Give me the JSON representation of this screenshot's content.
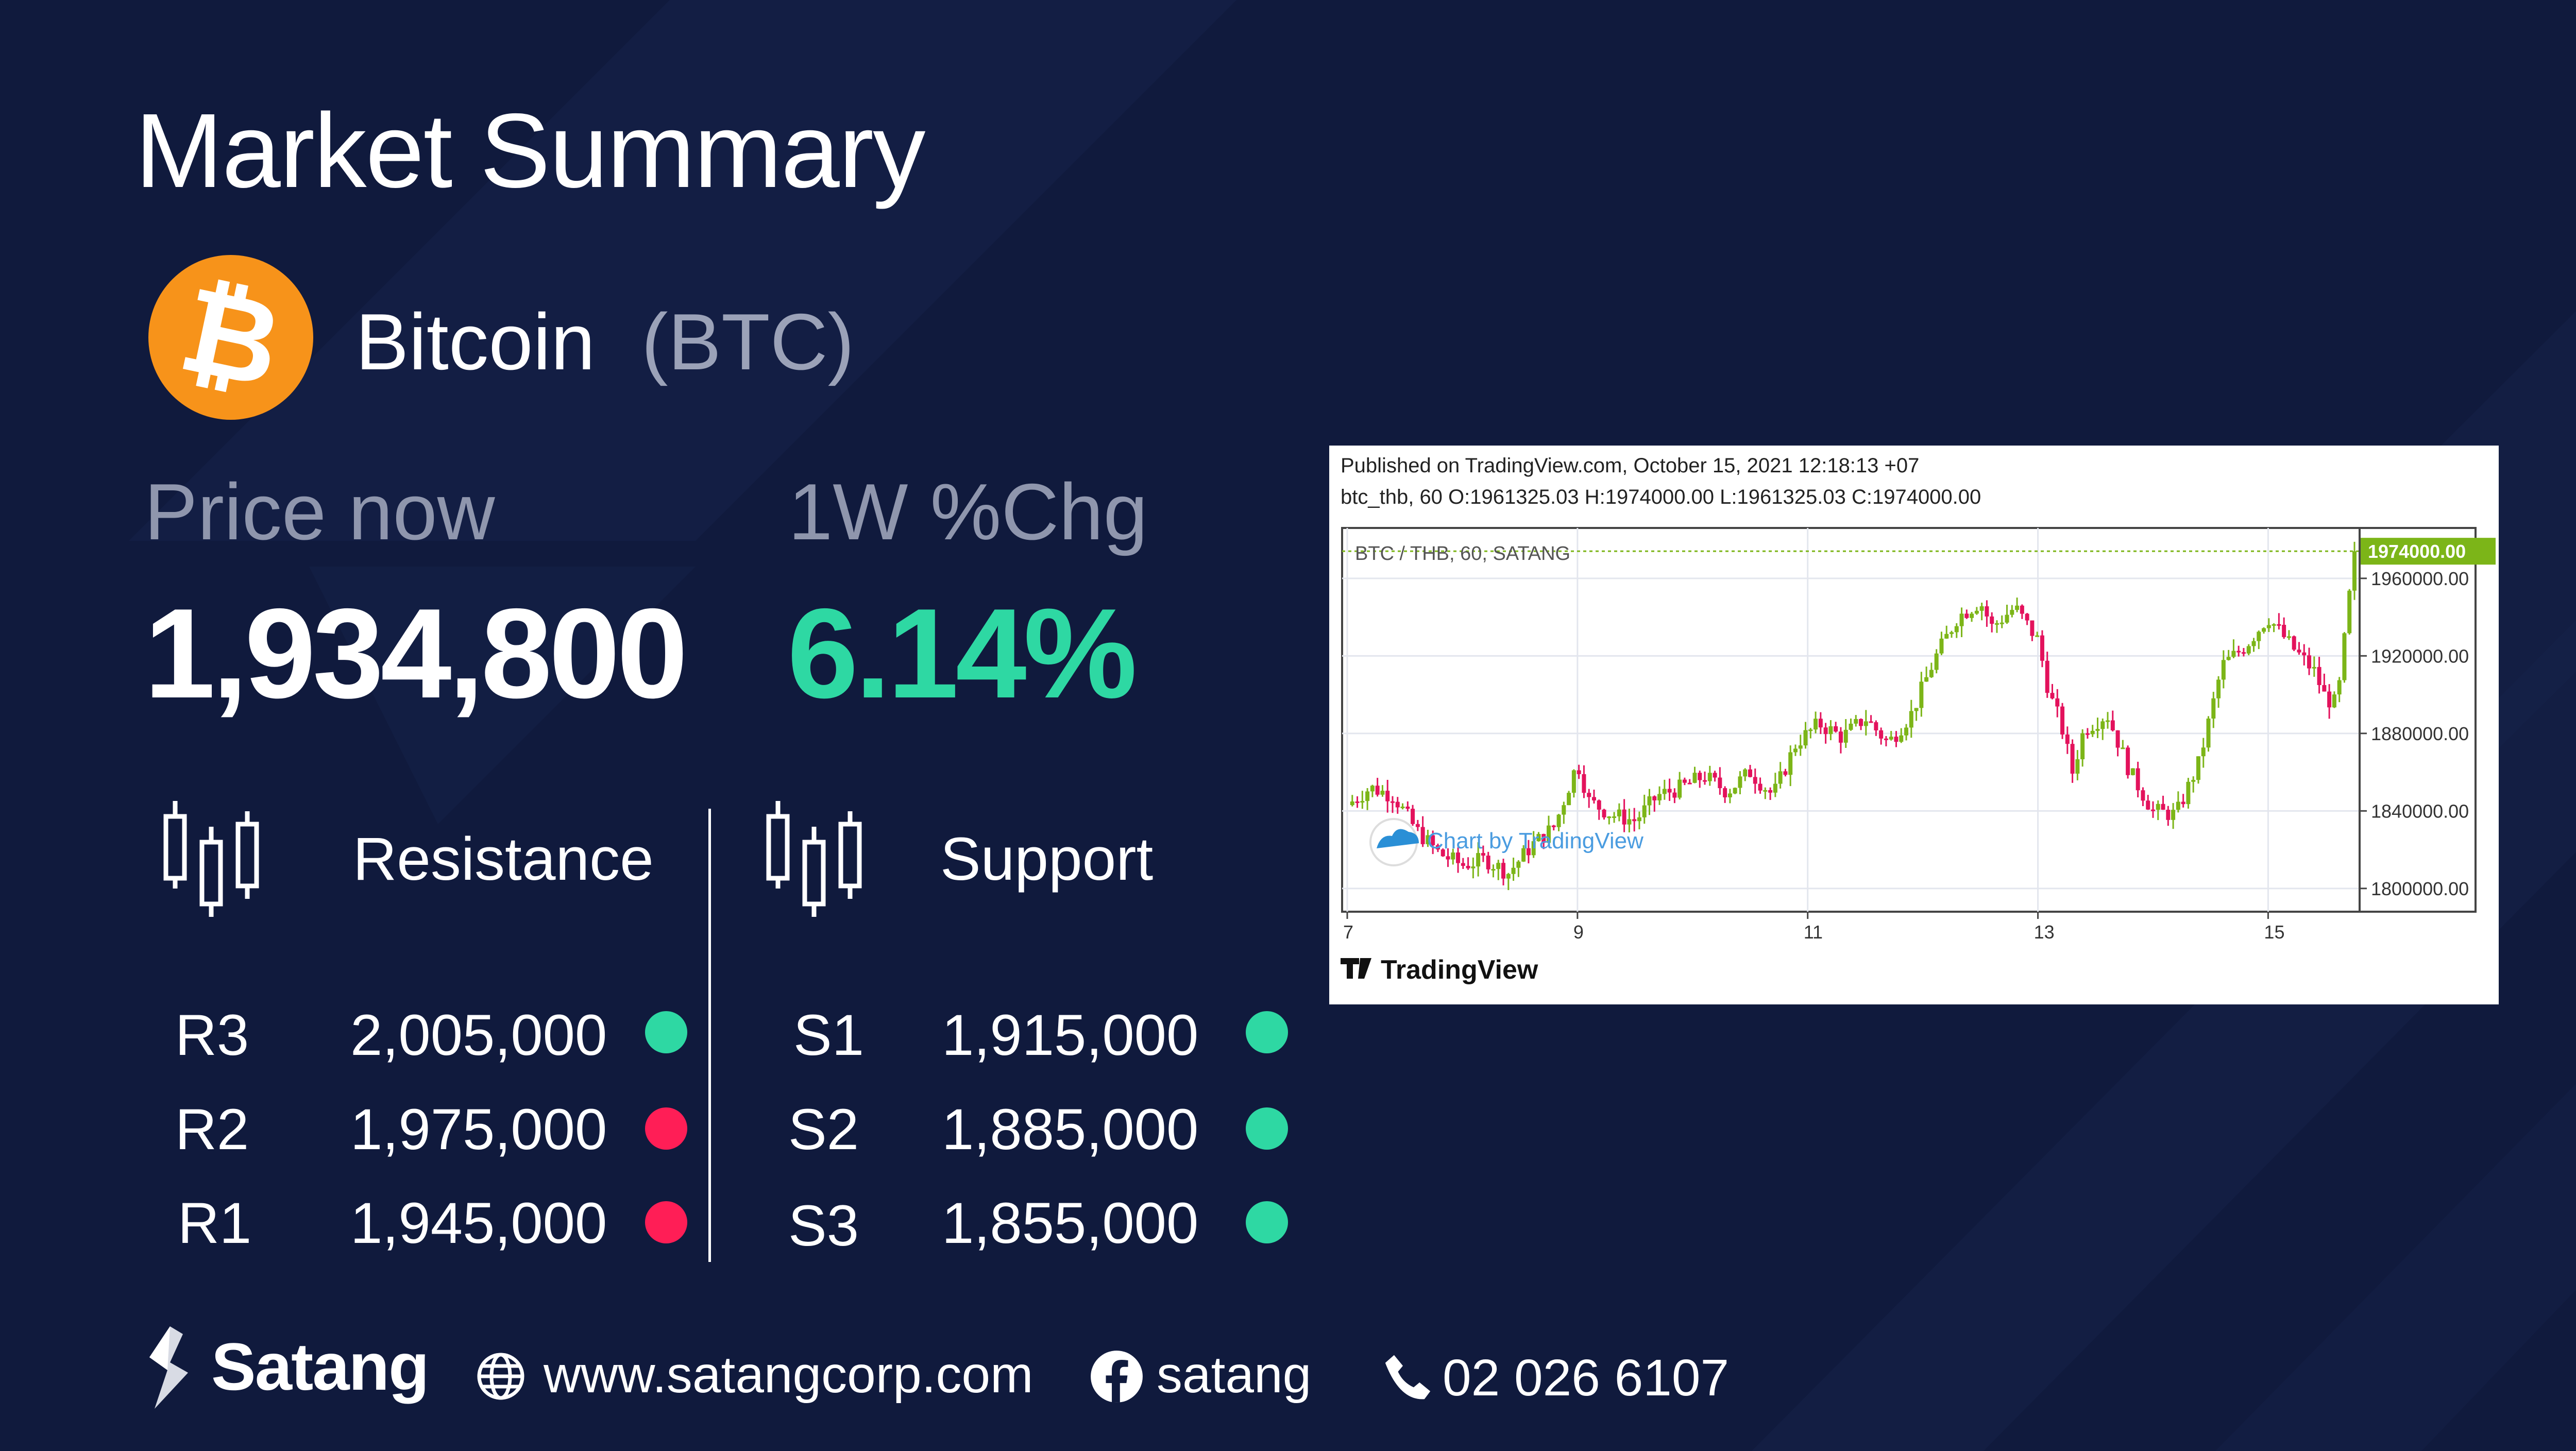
{
  "title": "Market Summary",
  "coin": {
    "name": "Bitcoin",
    "ticker": "(BTC)",
    "logo_glyph": "₿",
    "logo_color": "#f7931a"
  },
  "price": {
    "label": "Price now",
    "value": "1,934,800"
  },
  "change": {
    "label": "1W %Chg",
    "value": "6.14%",
    "color": "#2ed8a3"
  },
  "resistance": {
    "label": "Resistance",
    "icon": "candlestick-icon",
    "levels": [
      {
        "name": "R3",
        "value": "2,005,000",
        "status_color": "#2ed8a3"
      },
      {
        "name": "R2",
        "value": "1,975,000",
        "status_color": "#ff1e56"
      },
      {
        "name": "R1",
        "value": "1,945,000",
        "status_color": "#ff1e56"
      }
    ]
  },
  "support": {
    "label": "Support",
    "icon": "candlestick-icon",
    "levels": [
      {
        "name": "S1",
        "value": "1,915,000",
        "status_color": "#2ed8a3"
      },
      {
        "name": "S2",
        "value": "1,885,000",
        "status_color": "#2ed8a3"
      },
      {
        "name": "S3",
        "value": "1,855,000",
        "status_color": "#2ed8a3"
      }
    ]
  },
  "chart_data": {
    "type": "candlestick",
    "header_line1": "Published on TradingView.com, October 15, 2021 12:18:13 +07",
    "header_line2": "btc_thb, 60 O:1961325.03 H:1974000.00 L:1961325.03 C:1974000.00",
    "inner_title": "BTC / THB, 60, SATANG",
    "watermark": "Chart by TradingView",
    "footer_brand": "TradingView",
    "last_price_label": "1974000.00",
    "last_price": 1974000,
    "y_ticks": [
      1960000,
      1920000,
      1880000,
      1840000,
      1800000
    ],
    "y_tick_labels": [
      "1960000.00",
      "1920000.00",
      "1880000.00",
      "1840000.00",
      "1800000.00"
    ],
    "ylim": [
      1788000,
      1986000
    ],
    "x_ticks": [
      7,
      9,
      11,
      13,
      15
    ],
    "xlim": [
      7,
      15.75
    ],
    "up_color": "#7cb518",
    "down_color": "#e3125c",
    "close_path": [
      [
        7.0,
        1843000
      ],
      [
        7.2,
        1852000
      ],
      [
        7.4,
        1848000
      ],
      [
        7.6,
        1830000
      ],
      [
        7.8,
        1818000
      ],
      [
        8.0,
        1812000
      ],
      [
        8.2,
        1815000
      ],
      [
        8.4,
        1808000
      ],
      [
        8.6,
        1822000
      ],
      [
        8.8,
        1832000
      ],
      [
        9.0,
        1865000
      ],
      [
        9.1,
        1845000
      ],
      [
        9.3,
        1838000
      ],
      [
        9.5,
        1835000
      ],
      [
        9.7,
        1848000
      ],
      [
        9.9,
        1852000
      ],
      [
        10.1,
        1858000
      ],
      [
        10.3,
        1850000
      ],
      [
        10.5,
        1860000
      ],
      [
        10.7,
        1848000
      ],
      [
        10.9,
        1875000
      ],
      [
        11.1,
        1885000
      ],
      [
        11.3,
        1878000
      ],
      [
        11.5,
        1888000
      ],
      [
        11.7,
        1875000
      ],
      [
        11.9,
        1890000
      ],
      [
        12.1,
        1918000
      ],
      [
        12.3,
        1940000
      ],
      [
        12.5,
        1948000
      ],
      [
        12.6,
        1935000
      ],
      [
        12.8,
        1945000
      ],
      [
        13.0,
        1928000
      ],
      [
        13.1,
        1900000
      ],
      [
        13.2,
        1885000
      ],
      [
        13.3,
        1860000
      ],
      [
        13.4,
        1882000
      ],
      [
        13.6,
        1890000
      ],
      [
        13.8,
        1860000
      ],
      [
        14.0,
        1840000
      ],
      [
        14.2,
        1838000
      ],
      [
        14.4,
        1865000
      ],
      [
        14.6,
        1915000
      ],
      [
        14.8,
        1925000
      ],
      [
        15.0,
        1940000
      ],
      [
        15.2,
        1925000
      ],
      [
        15.4,
        1912000
      ],
      [
        15.5,
        1898000
      ],
      [
        15.6,
        1895000
      ],
      [
        15.75,
        1974000
      ]
    ]
  },
  "footer": {
    "brand": "Satang",
    "website": "www.satangcorp.com",
    "facebook": "satang",
    "phone": "02 026 6107"
  }
}
